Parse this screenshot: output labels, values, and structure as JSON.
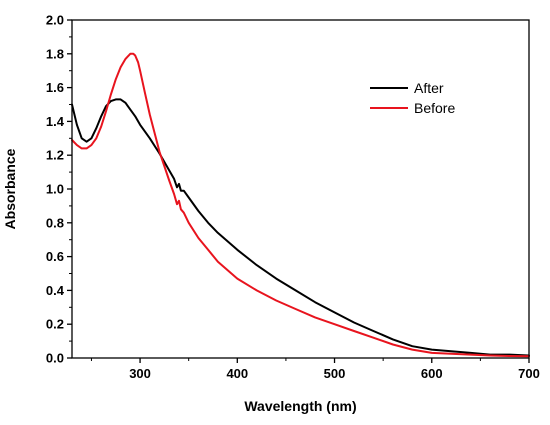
{
  "chart_data": {
    "type": "line",
    "title": "",
    "xlabel": "Wavelength (nm)",
    "ylabel": "Absorbance",
    "xlim": [
      230,
      700
    ],
    "ylim": [
      0.0,
      2.0
    ],
    "xticks": [
      300,
      400,
      500,
      600,
      700
    ],
    "yticks": [
      0.0,
      0.2,
      0.4,
      0.6,
      0.8,
      1.0,
      1.2,
      1.4,
      1.6,
      1.8,
      2.0
    ],
    "xtick_labels": [
      "300",
      "400",
      "500",
      "600",
      "700"
    ],
    "ytick_labels": [
      "0.0",
      "0.2",
      "0.4",
      "0.6",
      "0.8",
      "1.0",
      "1.2",
      "1.4",
      "1.6",
      "1.8",
      "2.0"
    ],
    "grid": false,
    "legend_position": "top-right",
    "series": [
      {
        "name": "After",
        "color": "#000000",
        "x": [
          230,
          235,
          240,
          245,
          250,
          255,
          260,
          265,
          270,
          275,
          280,
          285,
          290,
          295,
          300,
          310,
          320,
          330,
          335,
          338,
          340,
          342,
          345,
          350,
          360,
          370,
          380,
          400,
          420,
          440,
          460,
          480,
          500,
          520,
          540,
          560,
          580,
          600,
          620,
          640,
          660,
          680,
          700
        ],
        "y": [
          1.5,
          1.38,
          1.3,
          1.28,
          1.3,
          1.36,
          1.43,
          1.49,
          1.52,
          1.53,
          1.53,
          1.51,
          1.47,
          1.43,
          1.38,
          1.3,
          1.21,
          1.11,
          1.06,
          1.01,
          1.03,
          0.99,
          0.99,
          0.95,
          0.87,
          0.8,
          0.74,
          0.64,
          0.55,
          0.47,
          0.4,
          0.33,
          0.27,
          0.21,
          0.16,
          0.11,
          0.07,
          0.05,
          0.04,
          0.03,
          0.02,
          0.02,
          0.015
        ]
      },
      {
        "name": "Before",
        "color": "#e8141e",
        "x": [
          230,
          235,
          240,
          245,
          250,
          255,
          260,
          265,
          270,
          275,
          280,
          285,
          290,
          293,
          295,
          298,
          300,
          305,
          310,
          320,
          330,
          335,
          338,
          340,
          342,
          345,
          350,
          360,
          370,
          380,
          400,
          420,
          440,
          460,
          480,
          500,
          520,
          540,
          560,
          580,
          600,
          620,
          640,
          660,
          680,
          700
        ],
        "y": [
          1.29,
          1.26,
          1.24,
          1.24,
          1.26,
          1.3,
          1.37,
          1.46,
          1.56,
          1.65,
          1.72,
          1.77,
          1.8,
          1.8,
          1.79,
          1.75,
          1.7,
          1.57,
          1.44,
          1.22,
          1.05,
          0.97,
          0.91,
          0.93,
          0.88,
          0.86,
          0.8,
          0.71,
          0.64,
          0.57,
          0.47,
          0.4,
          0.34,
          0.29,
          0.24,
          0.2,
          0.16,
          0.12,
          0.08,
          0.05,
          0.03,
          0.025,
          0.02,
          0.015,
          0.012,
          0.01
        ]
      }
    ]
  }
}
